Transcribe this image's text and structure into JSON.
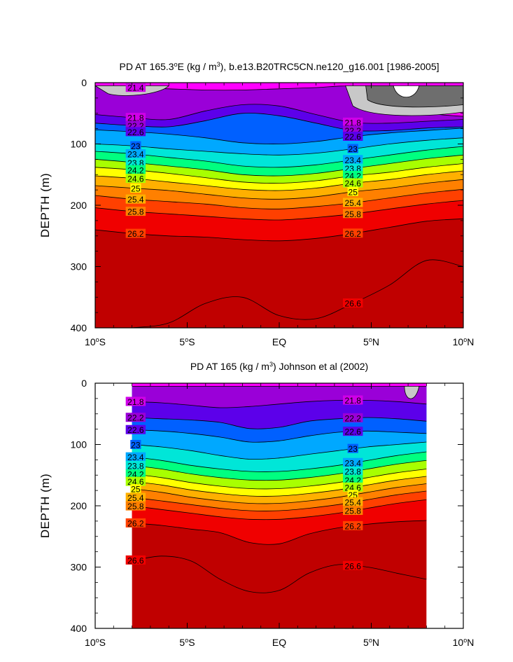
{
  "chart_data": [
    {
      "type": "contour",
      "title": "PD AT 165.3°E (kg / m³), b.e13.B20TRC5CN.ne120_g16.001 [1986-2005]",
      "title_parts": {
        "prefix": "PD AT 165.3",
        "sup1": "o",
        "mid": "E (kg / m",
        "sup2": "3",
        "suffix": "), b.e13.B20TRC5CN.ne120_g16.001 [1986-2005]"
      },
      "ylabel": "DEPTH (m)",
      "xlim": [
        -10,
        10
      ],
      "ylim": [
        0,
        400
      ],
      "y_reversed": true,
      "x_ticks": [
        {
          "v": -10,
          "num": "10",
          "deg": "o",
          "hem": "S"
        },
        {
          "v": -5,
          "num": "5",
          "deg": "o",
          "hem": "S"
        },
        {
          "v": 0,
          "num": "EQ",
          "deg": "",
          "hem": ""
        },
        {
          "v": 5,
          "num": "5",
          "deg": "o",
          "hem": "N"
        },
        {
          "v": 10,
          "num": "10",
          "deg": "o",
          "hem": "N"
        }
      ],
      "y_ticks": [
        0,
        100,
        200,
        300,
        400
      ],
      "data_xrange": [
        -10,
        10
      ],
      "contour_labels": [
        "21.4",
        "21.8",
        "22.2",
        "22.6",
        "23",
        "23.4",
        "23.8",
        "24.2",
        "24.6",
        "25",
        "25.4",
        "25.8",
        "26.2",
        "26.6"
      ],
      "isopycnal_depths": [
        {
          "level": 21.4,
          "depth": [
            5,
            8,
            10,
            12,
            12,
            10,
            8,
            6,
            20,
            48,
            55
          ]
        },
        {
          "level": 21.8,
          "depth": [
            52,
            57,
            60,
            46,
            36,
            38,
            52,
            65,
            66,
            63,
            60
          ]
        },
        {
          "level": 22.2,
          "depth": [
            66,
            70,
            72,
            62,
            50,
            54,
            66,
            78,
            78,
            74,
            72
          ]
        },
        {
          "level": 22.6,
          "depth": [
            77,
            80,
            84,
            90,
            98,
            100,
            96,
            88,
            82,
            78,
            74
          ]
        },
        {
          "level": 23.0,
          "depth": [
            100,
            103,
            108,
            112,
            116,
            118,
            115,
            108,
            100,
            94,
            90
          ]
        },
        {
          "level": 23.4,
          "depth": [
            112,
            116,
            122,
            128,
            136,
            138,
            134,
            126,
            118,
            110,
            104
          ]
        },
        {
          "level": 23.8,
          "depth": [
            125,
            130,
            136,
            142,
            150,
            152,
            148,
            140,
            132,
            124,
            118
          ]
        },
        {
          "level": 24.2,
          "depth": [
            138,
            142,
            148,
            155,
            162,
            164,
            160,
            152,
            146,
            138,
            132
          ]
        },
        {
          "level": 24.6,
          "depth": [
            152,
            156,
            162,
            168,
            174,
            176,
            172,
            164,
            158,
            150,
            144
          ]
        },
        {
          "level": 25.0,
          "depth": [
            168,
            172,
            176,
            182,
            188,
            190,
            186,
            178,
            172,
            164,
            158
          ]
        },
        {
          "level": 25.4,
          "depth": [
            184,
            190,
            194,
            198,
            204,
            206,
            202,
            196,
            188,
            180,
            174
          ]
        },
        {
          "level": 25.8,
          "depth": [
            204,
            210,
            214,
            218,
            222,
            224,
            220,
            214,
            206,
            198,
            192
          ]
        },
        {
          "level": 26.2,
          "depth": [
            240,
            246,
            250,
            252,
            256,
            258,
            254,
            246,
            236,
            226,
            222
          ]
        },
        {
          "level": 26.6,
          "depth": [
            405,
            400,
            392,
            360,
            350,
            380,
            385,
            360,
            330,
            290,
            300
          ]
        }
      ]
    },
    {
      "type": "contour",
      "title": "PD AT 165 (kg / m³) Johnson et al (2002)",
      "title_parts": {
        "prefix": "PD AT 165 (kg / m",
        "sup1": "",
        "mid": "",
        "sup2": "3",
        "suffix": ") Johnson et al (2002)"
      },
      "ylabel": "DEPTH (m)",
      "xlim": [
        -10,
        10
      ],
      "ylim": [
        0,
        400
      ],
      "y_reversed": true,
      "x_ticks": [
        {
          "v": -10,
          "num": "10",
          "deg": "o",
          "hem": "S"
        },
        {
          "v": -5,
          "num": "5",
          "deg": "o",
          "hem": "S"
        },
        {
          "v": 0,
          "num": "EQ",
          "deg": "",
          "hem": ""
        },
        {
          "v": 5,
          "num": "5",
          "deg": "o",
          "hem": "N"
        },
        {
          "v": 10,
          "num": "10",
          "deg": "o",
          "hem": "N"
        }
      ],
      "y_ticks": [
        0,
        100,
        200,
        300,
        400
      ],
      "data_xrange": [
        -8,
        8
      ],
      "contour_labels": [
        "21.8",
        "22.2",
        "22.6",
        "23",
        "23.4",
        "23.8",
        "24.2",
        "24.6",
        "25",
        "25.4",
        "25.8",
        "26.2",
        "26.6"
      ],
      "isopycnal_depths": [
        {
          "level": 21.4,
          "depth": [
            5,
            5,
            5,
            5,
            5,
            5,
            5,
            5,
            5,
            5,
            5
          ]
        },
        {
          "level": 21.8,
          "depth": [
            30,
            32,
            36,
            40,
            38,
            34,
            30,
            28,
            28,
            30,
            34
          ]
        },
        {
          "level": 22.2,
          "depth": [
            56,
            58,
            60,
            64,
            74,
            72,
            62,
            58,
            56,
            58,
            62
          ]
        },
        {
          "level": 22.6,
          "depth": [
            76,
            78,
            82,
            88,
            96,
            94,
            86,
            80,
            78,
            80,
            82
          ]
        },
        {
          "level": 23.0,
          "depth": [
            100,
            104,
            110,
            118,
            124,
            122,
            116,
            110,
            104,
            100,
            96
          ]
        },
        {
          "level": 23.4,
          "depth": [
            120,
            126,
            134,
            140,
            144,
            144,
            140,
            134,
            126,
            118,
            112
          ]
        },
        {
          "level": 23.8,
          "depth": [
            134,
            140,
            148,
            154,
            158,
            158,
            154,
            148,
            140,
            132,
            126
          ]
        },
        {
          "level": 24.2,
          "depth": [
            148,
            154,
            162,
            168,
            172,
            172,
            168,
            162,
            154,
            146,
            140
          ]
        },
        {
          "level": 24.6,
          "depth": [
            160,
            166,
            174,
            180,
            184,
            184,
            180,
            174,
            166,
            158,
            152
          ]
        },
        {
          "level": 25.0,
          "depth": [
            172,
            178,
            186,
            192,
            196,
            196,
            192,
            186,
            178,
            170,
            164
          ]
        },
        {
          "level": 25.4,
          "depth": [
            186,
            192,
            198,
            204,
            208,
            208,
            204,
            198,
            190,
            182,
            176
          ]
        },
        {
          "level": 25.8,
          "depth": [
            200,
            206,
            212,
            218,
            222,
            222,
            218,
            212,
            204,
            196,
            190
          ]
        },
        {
          "level": 26.2,
          "depth": [
            228,
            232,
            238,
            244,
            260,
            262,
            246,
            236,
            230,
            226,
            224
          ]
        },
        {
          "level": 26.6,
          "depth": [
            290,
            282,
            290,
            320,
            340,
            338,
            310,
            296,
            300,
            310,
            320
          ]
        }
      ]
    }
  ],
  "colors": {
    "background": "#ffffff",
    "level_fill_21_4": "#c8c8c8",
    "level_fill_21_0": "#6e6e6e",
    "levels": {
      "21.4": "#ff00ff",
      "21.8": "#d000e8",
      "22.2": "#9a00d8",
      "22.6": "#5c00ea",
      "23.0": "#0060ff",
      "23.4": "#00a8ff",
      "23.8": "#00e6d8",
      "24.2": "#00ff80",
      "24.6": "#a8ff00",
      "25.0": "#ffff00",
      "25.4": "#ffb000",
      "25.8": "#ff8000",
      "26.2": "#ff4000",
      "26.6": "#f00000",
      "27.0": "#c00000"
    }
  }
}
